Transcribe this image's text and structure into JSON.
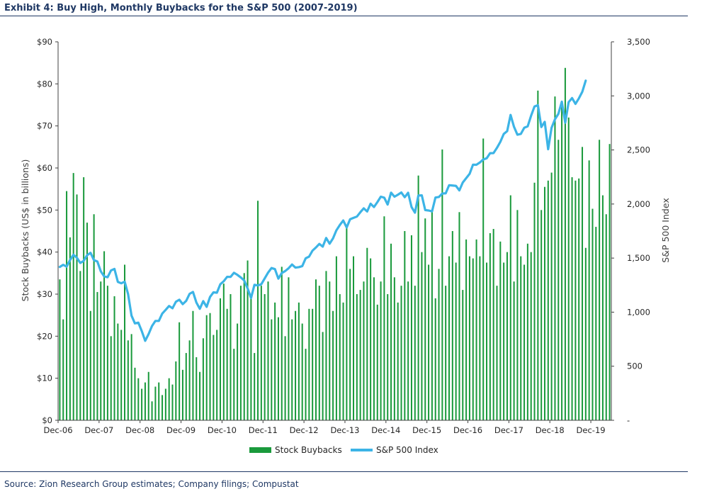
{
  "title": "Exhibit 4: Buy High, Monthly Buybacks for the S&P 500 (2007-2019)",
  "source": "Source: Zion Research Group estimates; Company filings; Compustat",
  "chart_data": {
    "type": "bar+line",
    "x_labels": [
      "Dec-06",
      "Dec-07",
      "Dec-08",
      "Dec-09",
      "Dec-10",
      "Dec-11",
      "Dec-12",
      "Dec-13",
      "Dec-14",
      "Dec-15",
      "Dec-16",
      "Dec-17",
      "Dec-18",
      "Dec-19"
    ],
    "ylabel": "Stock Buybacks (US$ in billions)",
    "y2label": "S&P 500 Index",
    "ylim": [
      0,
      90
    ],
    "y2lim": [
      0,
      3500
    ],
    "y_ticks": [
      "$0",
      "$10",
      "$20",
      "$30",
      "$40",
      "$50",
      "$60",
      "$70",
      "$80",
      "$90"
    ],
    "y2_ticks": [
      "-",
      "500",
      "1,000",
      "1,500",
      "2,000",
      "2,500",
      "3,000",
      "3,500"
    ],
    "colors": {
      "bars": "#1a9a3c",
      "line": "#3cb4e6",
      "axis": "#404040",
      "rule": "#1f3864"
    },
    "series": [
      {
        "name": "Stock Buybacks",
        "type": "bar",
        "values": [
          33.5,
          24,
          54.5,
          43.5,
          58.8,
          53.7,
          35.5,
          57.8,
          47,
          26,
          49,
          30.5,
          33,
          40.2,
          32,
          20,
          29.5,
          23,
          21.5,
          37,
          19,
          20.5,
          12.5,
          10,
          7.5,
          9,
          11.5,
          4.5,
          8,
          9,
          6,
          7.5,
          10,
          8.5,
          14,
          23.3,
          12,
          16,
          19,
          26,
          15,
          11.5,
          19.5,
          25,
          25.5,
          20.3,
          21.5,
          29,
          32.5,
          26.5,
          30,
          17,
          23,
          32,
          35,
          38,
          29.5,
          16,
          52.2,
          32,
          30,
          33,
          24,
          28,
          24.5,
          36.5,
          20,
          34,
          24,
          26,
          28,
          23,
          17,
          26.5,
          26.5,
          33.5,
          32,
          21,
          35.5,
          33,
          26,
          39,
          30,
          28,
          46.5,
          36,
          39,
          30,
          31,
          33,
          41,
          38.5,
          34,
          27.5,
          33,
          48.5,
          30,
          42,
          34,
          28,
          32,
          45,
          33,
          44,
          32,
          58.2,
          40,
          48,
          37,
          50,
          29,
          36,
          64.4,
          32,
          39,
          45,
          37.5,
          49.5,
          31,
          43,
          39,
          38.5,
          43,
          39,
          67,
          37.5,
          44.5,
          45.5,
          32,
          42.5,
          37.5,
          40,
          53.5,
          33,
          50,
          39,
          37,
          42,
          40,
          56.5,
          78.4,
          50,
          55.5,
          57,
          58.9,
          77,
          66.7,
          76,
          83.8,
          72,
          57.8,
          57,
          57.5,
          65,
          41,
          61.8,
          50.3,
          46,
          66.7,
          53.5,
          49,
          65.7
        ]
      },
      {
        "name": "S&P 500 Index",
        "type": "line",
        "values": [
          1418,
          1438,
          1421,
          1482,
          1531,
          1503,
          1455,
          1474,
          1527,
          1549,
          1481,
          1468,
          1378,
          1331,
          1323,
          1386,
          1400,
          1280,
          1267,
          1282,
          1166,
          968,
          896,
          903,
          825,
          735,
          797,
          872,
          919,
          919,
          987,
          1021,
          1057,
          1036,
          1096,
          1115,
          1074,
          1104,
          1169,
          1187,
          1089,
          1031,
          1102,
          1049,
          1141,
          1183,
          1180,
          1258,
          1286,
          1327,
          1326,
          1364,
          1345,
          1321,
          1293,
          1219,
          1131,
          1253,
          1247,
          1258,
          1312,
          1366,
          1408,
          1398,
          1310,
          1362,
          1380,
          1406,
          1441,
          1412,
          1416,
          1426,
          1498,
          1514,
          1569,
          1598,
          1631,
          1606,
          1686,
          1633,
          1682,
          1757,
          1806,
          1848,
          1783,
          1859,
          1872,
          1884,
          1924,
          1960,
          1931,
          2003,
          1972,
          2018,
          2068,
          2059,
          1995,
          2105,
          2068,
          2086,
          2107,
          2063,
          2104,
          1972,
          1920,
          2079,
          2080,
          1944,
          1940,
          1932,
          2060,
          2065,
          2097,
          2099,
          2174,
          2171,
          2168,
          2126,
          2199,
          2239,
          2279,
          2364,
          2363,
          2384,
          2412,
          2423,
          2470,
          2471,
          2519,
          2575,
          2648,
          2674,
          2824,
          2714,
          2641,
          2648,
          2705,
          2718,
          2816,
          2902,
          2914,
          2712,
          2760,
          2507,
          2705,
          2784,
          2834,
          2946,
          2752,
          2942,
          2980,
          2926,
          2977,
          3038,
          3141
        ]
      }
    ]
  },
  "legend": {
    "bars_label": "Stock Buybacks",
    "line_label": "S&P 500 Index"
  }
}
